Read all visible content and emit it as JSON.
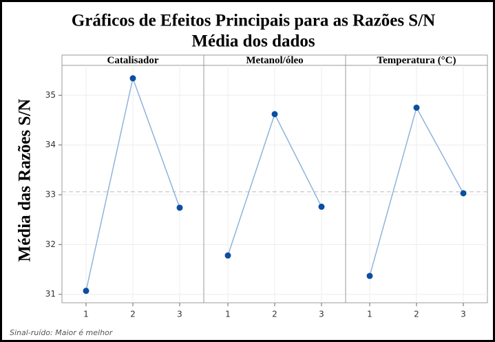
{
  "chart_data": {
    "type": "line",
    "title": "Gráficos de Efeitos Principais para as Razões S/N",
    "subtitle": "Média dos dados",
    "ylabel": "Média das Razões S/N",
    "note": "Sinal-ruído: Maior é melhor",
    "ylim": [
      30.83,
      35.6
    ],
    "yticks": [
      31,
      32,
      33,
      34,
      35
    ],
    "grid": true,
    "color": "#0b4ea2",
    "line_color": "#8fb3d9",
    "reference_line": 33.06,
    "panels": [
      {
        "title": "Catalisador",
        "categories": [
          "1",
          "2",
          "3"
        ],
        "values": [
          31.07,
          35.34,
          32.74
        ]
      },
      {
        "title": "Metanol/óleo",
        "categories": [
          "1",
          "2",
          "3"
        ],
        "values": [
          31.78,
          34.62,
          32.76
        ]
      },
      {
        "title": "Temperatura (°C)",
        "categories": [
          "1",
          "2",
          "3"
        ],
        "values": [
          31.37,
          34.75,
          33.03
        ]
      }
    ]
  }
}
